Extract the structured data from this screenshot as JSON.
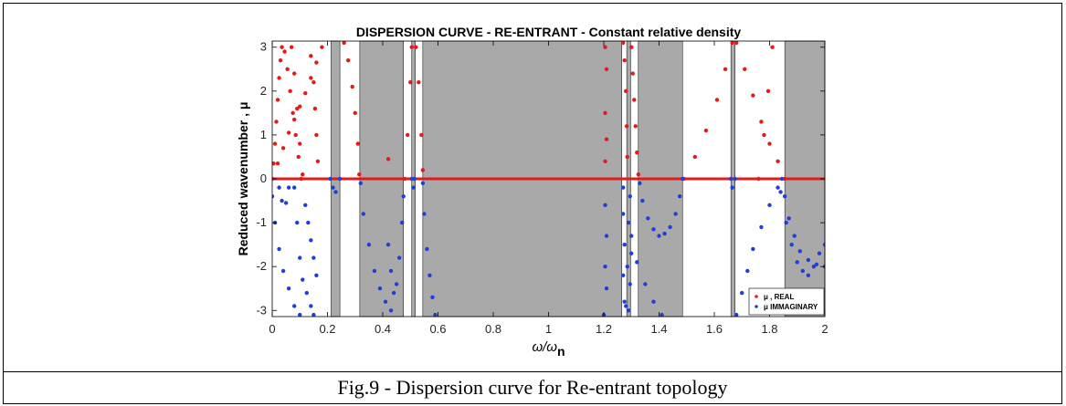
{
  "chart_data": {
    "type": "scatter",
    "title": "DISPERSION CURVE - RE-ENTRANT - Constant relative density",
    "xlabel": "ω/ω",
    "xlabel_sub": "n",
    "ylabel": "Reduced wavenumber , μ",
    "xlim": [
      0,
      2
    ],
    "ylim": [
      -3.14,
      3.14
    ],
    "x_ticks": [
      "0",
      "0.2",
      "0.4",
      "0.6",
      "0.8",
      "1",
      "1.2",
      "1.4",
      "1.6",
      "1.8",
      "2"
    ],
    "x_tick_values": [
      0,
      0.2,
      0.4,
      0.6,
      0.8,
      1,
      1.2,
      1.4,
      1.6,
      1.8,
      2
    ],
    "y_ticks": [
      "-3",
      "-2",
      "-1",
      "0",
      "1",
      "2",
      "3"
    ],
    "y_tick_values": [
      -3,
      -2,
      -1,
      0,
      1,
      2,
      3
    ],
    "grid": false,
    "legend_position": "bottom-right",
    "band_gaps": [
      [
        0.213,
        0.245
      ],
      [
        0.317,
        0.475
      ],
      [
        0.505,
        0.518
      ],
      [
        0.545,
        1.265
      ],
      [
        1.283,
        1.297
      ],
      [
        1.325,
        1.485
      ],
      [
        1.66,
        1.675
      ],
      [
        1.855,
        2.0
      ]
    ],
    "series": [
      {
        "name": "μ , REAL",
        "color": "#e31a1c",
        "points": [
          [
            0.0,
            0.0
          ],
          [
            0.005,
            0.35
          ],
          [
            0.01,
            0.8
          ],
          [
            0.015,
            1.3
          ],
          [
            0.02,
            1.8
          ],
          [
            0.025,
            2.3
          ],
          [
            0.03,
            2.7
          ],
          [
            0.035,
            3.0
          ],
          [
            0.045,
            2.9
          ],
          [
            0.055,
            2.5
          ],
          [
            0.065,
            2.0
          ],
          [
            0.075,
            1.5
          ],
          [
            0.085,
            1.0
          ],
          [
            0.095,
            0.5
          ],
          [
            0.105,
            0.0
          ],
          [
            0.07,
            3.0
          ],
          [
            0.08,
            2.4
          ],
          [
            0.09,
            1.6
          ],
          [
            0.1,
            0.8
          ],
          [
            0.11,
            0.1
          ],
          [
            0.0,
            0.0
          ],
          [
            0.02,
            0.35
          ],
          [
            0.04,
            0.7
          ],
          [
            0.06,
            1.05
          ],
          [
            0.08,
            1.35
          ],
          [
            0.1,
            1.65
          ],
          [
            0.12,
            1.95
          ],
          [
            0.14,
            2.3
          ],
          [
            0.16,
            2.65
          ],
          [
            0.18,
            3.0
          ],
          [
            0.14,
            2.8
          ],
          [
            0.15,
            2.2
          ],
          [
            0.155,
            1.6
          ],
          [
            0.16,
            1.0
          ],
          [
            0.165,
            0.4
          ],
          [
            0.26,
            3.1
          ],
          [
            0.275,
            2.7
          ],
          [
            0.29,
            2.1
          ],
          [
            0.3,
            1.5
          ],
          [
            0.31,
            0.8
          ],
          [
            0.315,
            0.1
          ],
          [
            0.42,
            0.45
          ],
          [
            0.48,
            0.0
          ],
          [
            0.49,
            1.0
          ],
          [
            0.5,
            2.2
          ],
          [
            0.505,
            3.0
          ],
          [
            0.52,
            3.0
          ],
          [
            0.53,
            2.2
          ],
          [
            0.54,
            1.0
          ],
          [
            0.545,
            0.2
          ],
          [
            1.205,
            3.0
          ],
          [
            1.21,
            2.5
          ],
          [
            1.205,
            1.5
          ],
          [
            1.21,
            0.9
          ],
          [
            1.205,
            0.4
          ],
          [
            1.27,
            3.1
          ],
          [
            1.275,
            2.7
          ],
          [
            1.28,
            2.0
          ],
          [
            1.283,
            1.2
          ],
          [
            1.285,
            0.5
          ],
          [
            1.3,
            3.0
          ],
          [
            1.305,
            2.4
          ],
          [
            1.31,
            1.8
          ],
          [
            1.315,
            1.2
          ],
          [
            1.32,
            0.6
          ],
          [
            1.325,
            0.1
          ],
          [
            1.49,
            0.0
          ],
          [
            1.53,
            0.5
          ],
          [
            1.57,
            1.1
          ],
          [
            1.61,
            1.8
          ],
          [
            1.64,
            2.5
          ],
          [
            1.665,
            3.1
          ],
          [
            1.68,
            3.1
          ],
          [
            1.71,
            2.5
          ],
          [
            1.74,
            1.9
          ],
          [
            1.77,
            1.3
          ],
          [
            1.8,
            0.8
          ],
          [
            1.83,
            0.4
          ],
          [
            1.855,
            0.0
          ],
          [
            1.76,
            0.0
          ],
          [
            1.78,
            1.0
          ],
          [
            1.795,
            2.0
          ],
          [
            1.81,
            3.0
          ]
        ]
      },
      {
        "name": "μ IMMAGINARY",
        "color": "#1f3fd6",
        "points": [
          [
            0.0,
            -0.4
          ],
          [
            0.01,
            -1.0
          ],
          [
            0.025,
            -1.6
          ],
          [
            0.04,
            -2.1
          ],
          [
            0.06,
            -2.5
          ],
          [
            0.08,
            -2.9
          ],
          [
            0.1,
            -3.1
          ],
          [
            0.025,
            -0.2
          ],
          [
            0.035,
            -0.5
          ],
          [
            0.05,
            -0.55
          ],
          [
            0.06,
            -0.2
          ],
          [
            0.08,
            -0.2
          ],
          [
            0.09,
            -1.0
          ],
          [
            0.1,
            -1.8
          ],
          [
            0.11,
            -2.3
          ],
          [
            0.125,
            -2.6
          ],
          [
            0.14,
            -2.9
          ],
          [
            0.15,
            -3.1
          ],
          [
            0.12,
            -0.6
          ],
          [
            0.13,
            -1.0
          ],
          [
            0.14,
            -1.4
          ],
          [
            0.15,
            -1.8
          ],
          [
            0.16,
            -2.2
          ],
          [
            0.21,
            0.0
          ],
          [
            0.22,
            -0.2
          ],
          [
            0.23,
            -0.3
          ],
          [
            0.245,
            0.0
          ],
          [
            0.32,
            -0.1
          ],
          [
            0.33,
            -0.8
          ],
          [
            0.35,
            -1.5
          ],
          [
            0.37,
            -2.1
          ],
          [
            0.39,
            -2.5
          ],
          [
            0.41,
            -2.8
          ],
          [
            0.43,
            -3.0
          ],
          [
            0.42,
            -1.5
          ],
          [
            0.43,
            -2.1
          ],
          [
            0.44,
            -2.6
          ],
          [
            0.45,
            -2.4
          ],
          [
            0.46,
            -1.8
          ],
          [
            0.47,
            -1.0
          ],
          [
            0.475,
            -0.4
          ],
          [
            0.505,
            0.0
          ],
          [
            0.51,
            -0.2
          ],
          [
            0.515,
            0.0
          ],
          [
            0.545,
            -0.1
          ],
          [
            0.55,
            -0.8
          ],
          [
            0.56,
            -1.6
          ],
          [
            0.57,
            -2.2
          ],
          [
            0.58,
            -2.7
          ],
          [
            0.59,
            -3.1
          ],
          [
            1.2,
            -3.1
          ],
          [
            1.21,
            -2.5
          ],
          [
            1.205,
            -2.0
          ],
          [
            1.21,
            -1.3
          ],
          [
            1.205,
            -0.6
          ],
          [
            1.27,
            -0.2
          ],
          [
            1.27,
            -0.8
          ],
          [
            1.275,
            -1.5
          ],
          [
            1.27,
            -2.2
          ],
          [
            1.275,
            -2.8
          ],
          [
            1.28,
            -2.9
          ],
          [
            1.285,
            -2.0
          ],
          [
            1.29,
            -1.0
          ],
          [
            1.295,
            -0.4
          ],
          [
            1.29,
            -3.0
          ],
          [
            1.295,
            -2.4
          ],
          [
            1.3,
            -1.7
          ],
          [
            1.33,
            -0.1
          ],
          [
            1.34,
            -0.5
          ],
          [
            1.36,
            -0.9
          ],
          [
            1.38,
            -1.15
          ],
          [
            1.4,
            -1.3
          ],
          [
            1.42,
            -1.25
          ],
          [
            1.44,
            -1.1
          ],
          [
            1.46,
            -0.8
          ],
          [
            1.475,
            -0.4
          ],
          [
            1.485,
            0.0
          ],
          [
            1.3,
            -1.3
          ],
          [
            1.32,
            -1.9
          ],
          [
            1.35,
            -2.4
          ],
          [
            1.38,
            -2.8
          ],
          [
            1.41,
            -3.1
          ],
          [
            1.66,
            0.0
          ],
          [
            1.665,
            -0.2
          ],
          [
            1.675,
            0.0
          ],
          [
            1.68,
            -3.1
          ],
          [
            1.7,
            -2.6
          ],
          [
            1.72,
            -2.1
          ],
          [
            1.74,
            -1.6
          ],
          [
            1.77,
            -1.1
          ],
          [
            1.8,
            -0.6
          ],
          [
            1.83,
            -0.2
          ],
          [
            1.845,
            0.0
          ],
          [
            1.855,
            -0.4
          ],
          [
            1.87,
            -0.9
          ],
          [
            1.89,
            -1.3
          ],
          [
            1.91,
            -1.65
          ],
          [
            1.94,
            -1.85
          ],
          [
            1.97,
            -1.95
          ],
          [
            2.0,
            -2.0
          ],
          [
            1.84,
            -0.3
          ],
          [
            1.86,
            -1.0
          ],
          [
            1.88,
            -1.5
          ],
          [
            1.9,
            -1.9
          ],
          [
            1.92,
            -2.1
          ],
          [
            1.94,
            -2.2
          ],
          [
            1.96,
            -2.0
          ],
          [
            1.98,
            -1.7
          ],
          [
            2.0,
            -1.5
          ]
        ]
      }
    ],
    "real_axis_line": {
      "y": 0,
      "color": "#e31a1c"
    },
    "imag_axis_line": {
      "y": 0,
      "color": "#1f3fd6",
      "x_range": [
        0,
        1.855
      ]
    }
  },
  "caption": "Fig.9 - Dispersion curve for Re-entrant topology"
}
